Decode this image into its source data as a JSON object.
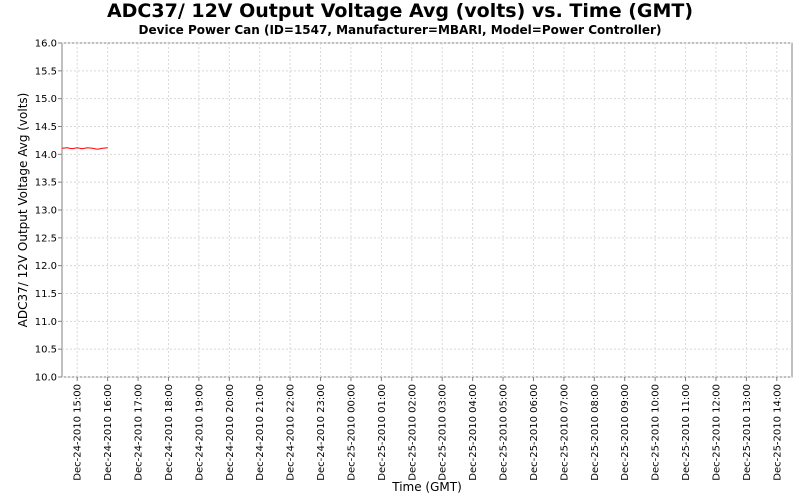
{
  "chart_data": {
    "type": "line",
    "title": "ADC37/ 12V Output Voltage Avg (volts) vs. Time (GMT)",
    "subtitle": "Device Power Can (ID=1547, Manufacturer=MBARI, Model=Power Controller)",
    "xlabel": "Time (GMT)",
    "ylabel": "ADC37/ 12V Output Voltage Avg (volts)",
    "ylim": [
      10.0,
      16.0
    ],
    "yticks": [
      "10.0",
      "10.5",
      "11.0",
      "11.5",
      "12.0",
      "12.5",
      "13.0",
      "13.5",
      "14.0",
      "14.5",
      "15.0",
      "15.5",
      "16.0"
    ],
    "xlim": [
      "2010-12-24 14:30",
      "2010-12-25 14:30"
    ],
    "xticks": [
      "Dec-24-2010 15:00",
      "Dec-24-2010 16:00",
      "Dec-24-2010 17:00",
      "Dec-24-2010 18:00",
      "Dec-24-2010 19:00",
      "Dec-24-2010 20:00",
      "Dec-24-2010 21:00",
      "Dec-24-2010 22:00",
      "Dec-24-2010 23:00",
      "Dec-25-2010 00:00",
      "Dec-25-2010 01:00",
      "Dec-25-2010 02:00",
      "Dec-25-2010 03:00",
      "Dec-25-2010 04:00",
      "Dec-25-2010 05:00",
      "Dec-25-2010 06:00",
      "Dec-25-2010 07:00",
      "Dec-25-2010 08:00",
      "Dec-25-2010 09:00",
      "Dec-25-2010 10:00",
      "Dec-25-2010 11:00",
      "Dec-25-2010 12:00",
      "Dec-25-2010 13:00",
      "Dec-25-2010 14:00"
    ],
    "grid": true,
    "series": [
      {
        "color": "#ff0000",
        "x": [
          "2010-12-24 14:30",
          "2010-12-24 14:40",
          "2010-12-24 14:50",
          "2010-12-24 15:00",
          "2010-12-24 15:10",
          "2010-12-24 15:20",
          "2010-12-24 15:30",
          "2010-12-24 15:40",
          "2010-12-24 15:50",
          "2010-12-24 16:00"
        ],
        "y": [
          14.11,
          14.12,
          14.1,
          14.12,
          14.1,
          14.12,
          14.11,
          14.09,
          14.11,
          14.12
        ]
      }
    ]
  }
}
